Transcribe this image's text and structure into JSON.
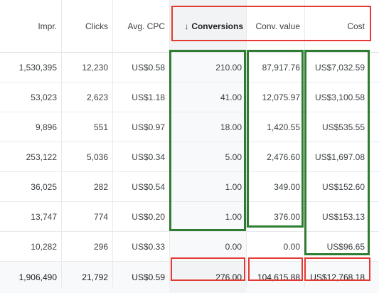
{
  "table": {
    "columns": [
      {
        "key": "impr",
        "label": "Impr."
      },
      {
        "key": "clicks",
        "label": "Clicks"
      },
      {
        "key": "avg_cpc",
        "label": "Avg. CPC"
      },
      {
        "key": "conversions",
        "label": "Conversions",
        "sorted": "descending"
      },
      {
        "key": "conv_value",
        "label": "Conv. value"
      },
      {
        "key": "cost",
        "label": "Cost"
      }
    ],
    "sort_indicator": "↓",
    "rows": [
      {
        "impr": "1,530,395",
        "clicks": "12,230",
        "avg_cpc": "US$0.58",
        "conversions": "210.00",
        "conv_value": "87,917.76",
        "cost": "US$7,032.59"
      },
      {
        "impr": "53,023",
        "clicks": "2,623",
        "avg_cpc": "US$1.18",
        "conversions": "41.00",
        "conv_value": "12,075.97",
        "cost": "US$3,100.58"
      },
      {
        "impr": "9,896",
        "clicks": "551",
        "avg_cpc": "US$0.97",
        "conversions": "18.00",
        "conv_value": "1,420.55",
        "cost": "US$535.55"
      },
      {
        "impr": "253,122",
        "clicks": "5,036",
        "avg_cpc": "US$0.34",
        "conversions": "5.00",
        "conv_value": "2,476.60",
        "cost": "US$1,697.08"
      },
      {
        "impr": "36,025",
        "clicks": "282",
        "avg_cpc": "US$0.54",
        "conversions": "1.00",
        "conv_value": "349.00",
        "cost": "US$152.60"
      },
      {
        "impr": "13,747",
        "clicks": "774",
        "avg_cpc": "US$0.20",
        "conversions": "1.00",
        "conv_value": "376.00",
        "cost": "US$153.13"
      },
      {
        "impr": "10,282",
        "clicks": "296",
        "avg_cpc": "US$0.33",
        "conversions": "0.00",
        "conv_value": "0.00",
        "cost": "US$96.65"
      }
    ],
    "total": {
      "impr": "1,906,490",
      "clicks": "21,792",
      "avg_cpc": "US$0.59",
      "conversions": "276.00",
      "conv_value": "104,615.88",
      "cost": "US$12,768.18"
    }
  },
  "highlight_colors": {
    "red": "#e53935",
    "green": "#2e7d32"
  }
}
